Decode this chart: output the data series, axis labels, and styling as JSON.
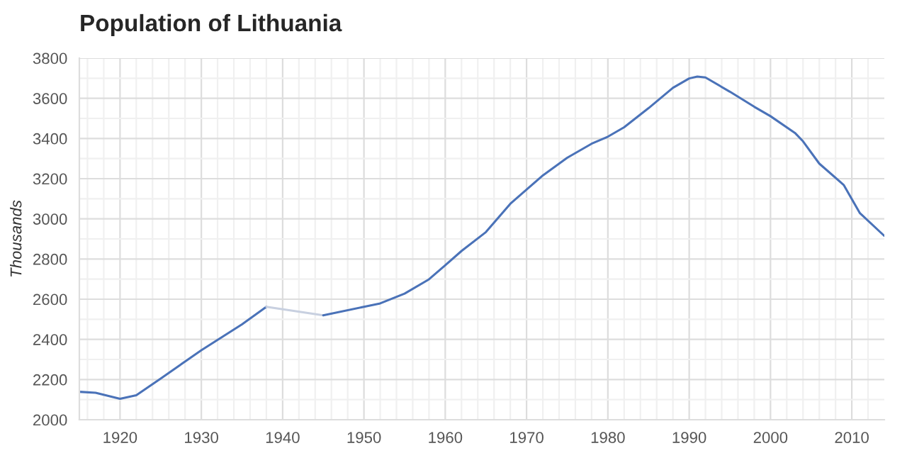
{
  "chart_data": {
    "type": "line",
    "title": "Population of Lithuania",
    "ylabel": "Thousands",
    "xlim": [
      1915,
      2014
    ],
    "ylim": [
      2000,
      3800
    ],
    "xticks": [
      {
        "value": 1916,
        "label": null
      },
      {
        "value": 1918,
        "label": null
      },
      1920,
      {
        "value": 1922,
        "label": null
      },
      {
        "value": 1924,
        "label": null
      },
      {
        "value": 1926,
        "label": null
      },
      {
        "value": 1928,
        "label": null
      },
      1930,
      {
        "value": 1932,
        "label": null
      },
      {
        "value": 1934,
        "label": null
      },
      {
        "value": 1936,
        "label": null
      },
      {
        "value": 1938,
        "label": null
      },
      1940,
      {
        "value": 1942,
        "label": null
      },
      {
        "value": 1944,
        "label": null
      },
      {
        "value": 1946,
        "label": null
      },
      {
        "value": 1948,
        "label": null
      },
      1950,
      {
        "value": 1952,
        "label": null
      },
      {
        "value": 1954,
        "label": null
      },
      {
        "value": 1956,
        "label": null
      },
      {
        "value": 1958,
        "label": null
      },
      1960,
      {
        "value": 1962,
        "label": null
      },
      {
        "value": 1964,
        "label": null
      },
      {
        "value": 1966,
        "label": null
      },
      {
        "value": 1968,
        "label": null
      },
      1970,
      {
        "value": 1972,
        "label": null
      },
      {
        "value": 1974,
        "label": null
      },
      {
        "value": 1976,
        "label": null
      },
      {
        "value": 1978,
        "label": null
      },
      1980,
      {
        "value": 1982,
        "label": null
      },
      {
        "value": 1984,
        "label": null
      },
      {
        "value": 1986,
        "label": null
      },
      {
        "value": 1988,
        "label": null
      },
      1990,
      {
        "value": 1992,
        "label": null
      },
      {
        "value": 1994,
        "label": null
      },
      {
        "value": 1996,
        "label": null
      },
      {
        "value": 1998,
        "label": null
      },
      2000,
      {
        "value": 2002,
        "label": null
      },
      {
        "value": 2004,
        "label": null
      },
      {
        "value": 2006,
        "label": null
      },
      {
        "value": 2008,
        "label": null
      },
      2010,
      {
        "value": 2012,
        "label": null
      }
    ],
    "yticks": [
      2000,
      {
        "value": 2100,
        "label": null
      },
      2200,
      {
        "value": 2300,
        "label": null
      },
      2400,
      {
        "value": 2500,
        "label": null
      },
      2600,
      {
        "value": 2700,
        "label": null
      },
      2800,
      {
        "value": 2900,
        "label": null
      },
      3000,
      {
        "value": 3100,
        "label": null
      },
      3200,
      {
        "value": 3300,
        "label": null
      },
      3400,
      {
        "value": 3500,
        "label": null
      },
      3600,
      {
        "value": 3700,
        "label": null
      },
      3800
    ],
    "grid": true,
    "series": [
      {
        "color": "#4a72b8",
        "x": [
          1915,
          1917,
          1920,
          1922,
          1925,
          1930,
          1935,
          1938
        ],
        "values": [
          2139,
          2134,
          2104,
          2122,
          2205,
          2346,
          2475,
          2562
        ]
      },
      {
        "color": "#c8d0e0",
        "x": [
          1938,
          1945
        ],
        "values": [
          2562,
          2520
        ]
      },
      {
        "color": "#4a72b8",
        "x": [
          1945,
          1950,
          1952,
          1955,
          1958,
          1960,
          1962,
          1965,
          1968,
          1970,
          1972,
          1975,
          1978,
          1980,
          1982,
          1985,
          1988,
          1990,
          1991,
          1992,
          1995,
          1998,
          2000,
          2003,
          2004,
          2006,
          2009,
          2011,
          2014
        ],
        "values": [
          2520,
          2562,
          2579,
          2628,
          2699,
          2769,
          2840,
          2934,
          3075,
          3146,
          3216,
          3304,
          3374,
          3409,
          3456,
          3551,
          3652,
          3699,
          3708,
          3704,
          3633,
          3558,
          3511,
          3428,
          3386,
          3275,
          3169,
          3028,
          2915
        ]
      }
    ]
  }
}
